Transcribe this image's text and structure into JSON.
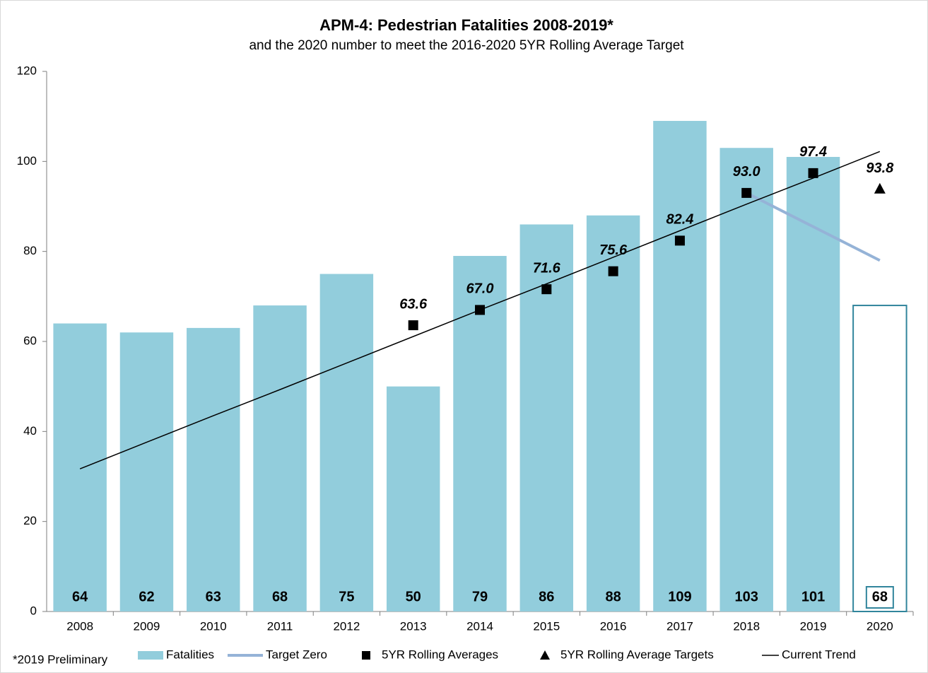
{
  "chart_data": {
    "type": "bar",
    "title": "APM-4: Pedestrian Fatalities 2008-2019*",
    "subtitle": "and the 2020 number to meet the 2016-2020 5YR Rolling Average Target",
    "footnote": "*2019 Preliminary",
    "categories": [
      "2008",
      "2009",
      "2010",
      "2011",
      "2012",
      "2013",
      "2014",
      "2015",
      "2016",
      "2017",
      "2018",
      "2019",
      "2020"
    ],
    "ylim": [
      0,
      120
    ],
    "yticks": [
      0,
      20,
      40,
      60,
      80,
      100,
      120
    ],
    "grid": false,
    "legend": "bottom",
    "series": [
      {
        "name": "Fatalities",
        "kind": "bar",
        "color": "#92cddc",
        "colors": [
          "#92cddc",
          "#92cddc",
          "#92cddc",
          "#92cddc",
          "#92cddc",
          "#92cddc",
          "#92cddc",
          "#92cddc",
          "#92cddc",
          "#92cddc",
          "#92cddc",
          "#92cddc",
          "#ffffff"
        ],
        "edgecolors": [
          null,
          null,
          null,
          null,
          null,
          null,
          null,
          null,
          null,
          null,
          null,
          null,
          "#31859c"
        ],
        "values": [
          64,
          62,
          63,
          68,
          75,
          50,
          79,
          86,
          88,
          109,
          103,
          101,
          68
        ]
      },
      {
        "name": "Target Zero",
        "kind": "line",
        "color": "#95b3d7",
        "values": [
          null,
          null,
          null,
          null,
          null,
          null,
          null,
          null,
          null,
          null,
          93.0,
          85.5,
          78.0
        ]
      },
      {
        "name": "5YR Rolling Averages",
        "kind": "square",
        "color": "#000000",
        "values": [
          null,
          null,
          null,
          null,
          null,
          63.6,
          67.0,
          71.6,
          75.6,
          82.4,
          93.0,
          97.4,
          null
        ],
        "value_labels": [
          null,
          null,
          null,
          null,
          null,
          "63.6",
          "67.0",
          "71.6",
          "75.6",
          "82.4",
          "93.0",
          "97.4",
          null
        ]
      },
      {
        "name": "5YR Rolling Average Targets",
        "kind": "triangle",
        "color": "#000000",
        "values": [
          null,
          null,
          null,
          null,
          null,
          null,
          null,
          null,
          null,
          null,
          null,
          null,
          93.8
        ],
        "value_labels": [
          null,
          null,
          null,
          null,
          null,
          null,
          null,
          null,
          null,
          null,
          null,
          null,
          "93.8"
        ]
      },
      {
        "name": "Current Trend",
        "kind": "line",
        "color": "#000000",
        "values": [
          31.7,
          37.6,
          43.5,
          49.3,
          55.2,
          61.1,
          67.0,
          72.8,
          78.7,
          84.6,
          90.5,
          96.3,
          102.2
        ]
      }
    ]
  }
}
